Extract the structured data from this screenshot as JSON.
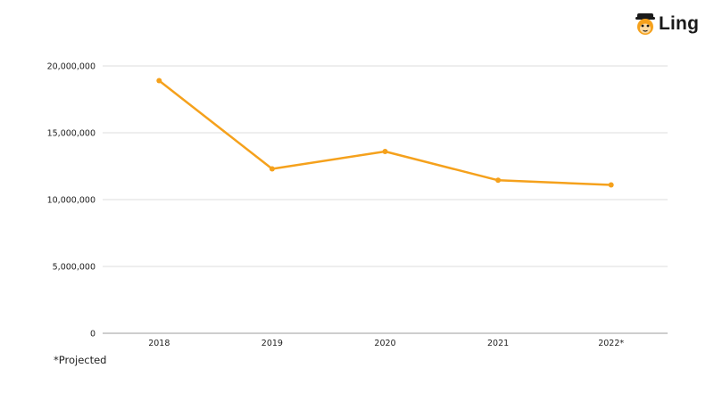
{
  "brand": {
    "name": "Ling",
    "accent": "#F5A11C"
  },
  "footnote": "*Projected",
  "chart_data": {
    "type": "line",
    "title": "",
    "xlabel": "",
    "ylabel": "",
    "categories": [
      "2018",
      "2019",
      "2020",
      "2021",
      "2022*"
    ],
    "series": [
      {
        "values": [
          18900000,
          12300000,
          13600000,
          11450000,
          11100000
        ],
        "color": "#F5A11C"
      }
    ],
    "ylim": [
      0,
      20000000
    ],
    "yticks": [
      0,
      5000000,
      10000000,
      15000000,
      20000000
    ],
    "ytick_labels": [
      "0",
      "5,000,000",
      "10,000,000",
      "15,000,000",
      "20,000,000"
    ],
    "grid": true,
    "legend": "none"
  }
}
